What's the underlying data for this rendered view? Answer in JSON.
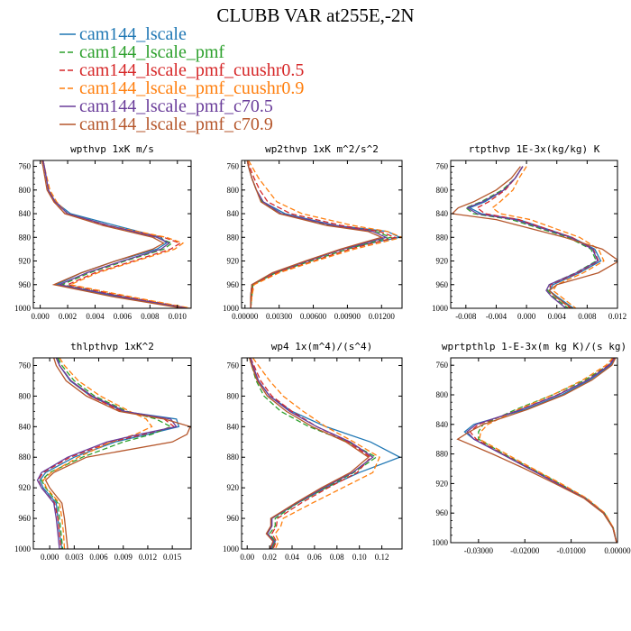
{
  "figure_title": "CLUBB VAR at255E,-2N",
  "legend": [
    {
      "label": "cam144_lscale",
      "color": "#1f77b4",
      "dash": ""
    },
    {
      "label": "cam144_lscale_pmf",
      "color": "#2ca02c",
      "dash": "6,3"
    },
    {
      "label": "cam144_lscale_pmf_cuushr0.5",
      "color": "#d62728",
      "dash": "6,3"
    },
    {
      "label": "cam144_lscale_pmf_cuushr0.9",
      "color": "#ff7f0e",
      "dash": "6,3"
    },
    {
      "label": "cam144_lscale_pmf_c70.5",
      "color": "#6a3d9a",
      "dash": ""
    },
    {
      "label": "cam144_lscale_pmf_c70.9",
      "color": "#b5562b",
      "dash": ""
    }
  ],
  "chart_data": [
    {
      "type": "line",
      "title": "wpthvp  1xK m/s",
      "xlim": [
        -0.0005,
        0.011
      ],
      "ylim": [
        1000,
        750
      ],
      "xticks": [
        0,
        0.002,
        0.004,
        0.006,
        0.008,
        0.01
      ],
      "xtick_labels": [
        "0.000",
        "0.002",
        "0.004",
        "0.006",
        "0.008",
        "0.010"
      ],
      "yticks": [
        760,
        800,
        840,
        880,
        920,
        960,
        1000
      ],
      "ytick_labels": [
        "760",
        "800",
        "840",
        "880",
        "920",
        "960",
        "1000"
      ],
      "y": [
        750,
        760,
        800,
        820,
        840,
        860,
        880,
        890,
        900,
        920,
        940,
        960,
        980,
        1000
      ],
      "series": [
        {
          "x": [
            0.0002,
            0.0003,
            0.0006,
            0.0011,
            0.0022,
            0.0055,
            0.0088,
            0.0092,
            0.0085,
            0.0055,
            0.003,
            0.0012,
            0.0055,
            0.0105
          ]
        },
        {
          "x": [
            0.0002,
            0.0003,
            0.0006,
            0.0011,
            0.002,
            0.005,
            0.0085,
            0.0096,
            0.009,
            0.0062,
            0.0036,
            0.0016,
            0.006,
            0.0108
          ]
        },
        {
          "x": [
            0.0002,
            0.0003,
            0.0006,
            0.001,
            0.0018,
            0.0048,
            0.009,
            0.0102,
            0.0095,
            0.0068,
            0.004,
            0.002,
            0.0062,
            0.0109
          ]
        },
        {
          "x": [
            0.0002,
            0.0003,
            0.0007,
            0.0012,
            0.002,
            0.005,
            0.0092,
            0.0104,
            0.0098,
            0.007,
            0.0042,
            0.0022,
            0.0065,
            0.011
          ]
        },
        {
          "x": [
            0.0002,
            0.0003,
            0.0006,
            0.0011,
            0.002,
            0.005,
            0.0085,
            0.0094,
            0.0088,
            0.006,
            0.0034,
            0.0014,
            0.0058,
            0.0107
          ]
        },
        {
          "x": [
            0.0001,
            0.0002,
            0.0005,
            0.001,
            0.0018,
            0.0046,
            0.0082,
            0.009,
            0.0082,
            0.0055,
            0.003,
            0.001,
            0.0052,
            0.0104
          ]
        }
      ]
    },
    {
      "type": "line",
      "title": "wp2thvp  1xK m^2/s^2",
      "xlim": [
        -0.0003,
        0.0138
      ],
      "ylim": [
        1000,
        750
      ],
      "xticks": [
        0,
        0.003,
        0.006,
        0.009,
        0.012
      ],
      "xtick_labels": [
        "0.00000",
        "0.00300",
        "0.00600",
        "0.00900",
        "0.01200"
      ],
      "yticks": [
        760,
        800,
        840,
        880,
        920,
        960,
        1000
      ],
      "ytick_labels": [
        "760",
        "800",
        "840",
        "880",
        "920",
        "960",
        "1000"
      ],
      "y": [
        750,
        760,
        780,
        800,
        820,
        840,
        860,
        870,
        880,
        900,
        920,
        940,
        960,
        980,
        1000
      ],
      "series": [
        {
          "x": [
            0.0002,
            0.0003,
            0.0006,
            0.001,
            0.0016,
            0.0035,
            0.008,
            0.0125,
            0.0136,
            0.0085,
            0.0055,
            0.0025,
            0.0006,
            0.0005,
            0.0005
          ]
        },
        {
          "x": [
            0.0002,
            0.0003,
            0.0006,
            0.001,
            0.0015,
            0.003,
            0.0075,
            0.0115,
            0.0128,
            0.009,
            0.0058,
            0.0027,
            0.0007,
            0.0006,
            0.0005
          ]
        },
        {
          "x": [
            0.0002,
            0.0004,
            0.0008,
            0.0013,
            0.002,
            0.004,
            0.0085,
            0.0118,
            0.0132,
            0.0092,
            0.006,
            0.0028,
            0.0007,
            0.0006,
            0.0005
          ]
        },
        {
          "x": [
            0.0003,
            0.0006,
            0.0012,
            0.002,
            0.0028,
            0.005,
            0.0095,
            0.0125,
            0.0138,
            0.0096,
            0.0062,
            0.003,
            0.0008,
            0.0006,
            0.0005
          ]
        },
        {
          "x": [
            0.0002,
            0.0003,
            0.0006,
            0.001,
            0.0016,
            0.0032,
            0.0078,
            0.0112,
            0.0124,
            0.0086,
            0.0055,
            0.0025,
            0.0006,
            0.0005,
            0.0005
          ]
        },
        {
          "x": [
            0.0002,
            0.0003,
            0.0006,
            0.001,
            0.0014,
            0.003,
            0.0072,
            0.0108,
            0.012,
            0.0084,
            0.0053,
            0.0024,
            0.0006,
            0.0005,
            0.0005
          ]
        }
      ]
    },
    {
      "type": "line",
      "title": "rtpthvp  1E-3x(kg/kg) K",
      "xlim": [
        -0.01,
        0.012
      ],
      "ylim": [
        1000,
        750
      ],
      "xticks": [
        -0.008,
        -0.004,
        0,
        0.004,
        0.008,
        0.012
      ],
      "xtick_labels": [
        "-0.008",
        "-0.004",
        "0.000",
        "0.004",
        "0.008",
        "0.012"
      ],
      "yticks": [
        760,
        800,
        840,
        880,
        920,
        960,
        1000
      ],
      "ytick_labels": [
        "760",
        "800",
        "840",
        "880",
        "920",
        "960",
        "1000"
      ],
      "y": [
        760,
        780,
        800,
        820,
        830,
        840,
        850,
        880,
        900,
        920,
        940,
        960,
        970,
        980,
        1000
      ],
      "series": [
        {
          "x": [
            -0.0005,
            -0.0015,
            -0.003,
            -0.0055,
            -0.0075,
            -0.006,
            -0.001,
            0.006,
            0.009,
            0.0098,
            0.007,
            0.0035,
            0.003,
            0.004,
            0.0062
          ]
        },
        {
          "x": [
            -0.0005,
            -0.0015,
            -0.0032,
            -0.006,
            -0.008,
            -0.007,
            -0.002,
            0.0055,
            0.0085,
            0.0092,
            0.0065,
            0.003,
            0.0028,
            0.0035,
            0.0055
          ]
        },
        {
          "x": [
            -0.0005,
            -0.0015,
            -0.0028,
            -0.005,
            -0.0065,
            -0.0055,
            -0.001,
            0.006,
            0.0088,
            0.0095,
            0.0068,
            0.0032,
            0.003,
            0.0038,
            0.0058
          ]
        },
        {
          "x": [
            0.0,
            -0.001,
            -0.0018,
            -0.0035,
            -0.0045,
            -0.0035,
            0.0005,
            0.007,
            0.0095,
            0.0102,
            0.0075,
            0.004,
            0.0035,
            0.0045,
            0.0065
          ]
        },
        {
          "x": [
            -0.0005,
            -0.0015,
            -0.003,
            -0.0058,
            -0.0078,
            -0.0065,
            -0.0015,
            0.0058,
            0.0087,
            0.0094,
            0.0066,
            0.003,
            0.0026,
            0.0033,
            0.0052
          ]
        },
        {
          "x": [
            -0.0008,
            -0.002,
            -0.004,
            -0.007,
            -0.009,
            -0.0098,
            -0.004,
            0.005,
            0.01,
            0.0122,
            0.0095,
            0.004,
            0.003,
            0.0038,
            0.006
          ]
        }
      ]
    },
    {
      "type": "line",
      "title": "thlpthvp  1xK^2",
      "xlim": [
        -0.002,
        0.0173
      ],
      "ylim": [
        1000,
        750
      ],
      "xticks": [
        0,
        0.003,
        0.006,
        0.009,
        0.012,
        0.015
      ],
      "xtick_labels": [
        "0.000",
        "0.003",
        "0.006",
        "0.009",
        "0.012",
        "0.015"
      ],
      "yticks": [
        760,
        800,
        840,
        880,
        920,
        960,
        1000
      ],
      "ytick_labels": [
        "760",
        "800",
        "840",
        "880",
        "920",
        "960",
        "1000"
      ],
      "y": [
        750,
        760,
        780,
        800,
        820,
        830,
        840,
        850,
        860,
        880,
        900,
        910,
        920,
        940,
        960,
        980,
        1000
      ],
      "series": [
        {
          "x": [
            0.001,
            0.0012,
            0.0025,
            0.005,
            0.009,
            0.0155,
            0.0158,
            0.012,
            0.008,
            0.003,
            -0.0005,
            -0.0012,
            -0.0008,
            0.0008,
            0.001,
            0.0012,
            0.0015
          ]
        },
        {
          "x": [
            0.001,
            0.0015,
            0.003,
            0.0055,
            0.0095,
            0.013,
            0.0148,
            0.0125,
            0.009,
            0.004,
            0.0,
            -0.001,
            -0.0005,
            0.001,
            0.0012,
            0.0014,
            0.0016
          ]
        },
        {
          "x": [
            0.0008,
            0.0012,
            0.0026,
            0.005,
            0.0088,
            0.014,
            0.0152,
            0.0115,
            0.0075,
            0.0025,
            -0.0008,
            -0.0014,
            -0.001,
            0.0006,
            0.001,
            0.0012,
            0.0014
          ]
        },
        {
          "x": [
            0.0012,
            0.0018,
            0.0035,
            0.0062,
            0.0098,
            0.0118,
            0.0125,
            0.0105,
            0.0075,
            0.0035,
            0.0002,
            -0.0008,
            -0.0004,
            0.0012,
            0.0015,
            0.0017,
            0.0018
          ]
        },
        {
          "x": [
            0.0008,
            0.0012,
            0.0026,
            0.0052,
            0.0092,
            0.0148,
            0.0155,
            0.011,
            0.007,
            0.0022,
            -0.001,
            -0.0015,
            -0.001,
            0.0005,
            0.0008,
            0.001,
            0.0012
          ]
        },
        {
          "x": [
            0.0005,
            0.0008,
            0.002,
            0.0045,
            0.0085,
            0.014,
            0.0172,
            0.0168,
            0.015,
            0.0045,
            0.0005,
            -0.0005,
            0.0,
            0.0015,
            0.0018,
            0.002,
            0.0022
          ]
        }
      ]
    },
    {
      "type": "line",
      "title": "wp4  1x(m^4)/(s^4)",
      "xlim": [
        -0.005,
        0.138
      ],
      "ylim": [
        1000,
        750
      ],
      "xticks": [
        0,
        0.02,
        0.04,
        0.06,
        0.08,
        0.1,
        0.12
      ],
      "xtick_labels": [
        "0.00",
        "0.02",
        "0.04",
        "0.06",
        "0.08",
        "0.10",
        "0.12"
      ],
      "yticks": [
        760,
        800,
        840,
        880,
        920,
        960,
        1000
      ],
      "ytick_labels": [
        "760",
        "800",
        "840",
        "880",
        "920",
        "960",
        "1000"
      ],
      "y": [
        750,
        760,
        780,
        800,
        820,
        840,
        860,
        880,
        900,
        920,
        940,
        960,
        970,
        980,
        990,
        1000
      ],
      "series": [
        {
          "x": [
            0.003,
            0.005,
            0.01,
            0.02,
            0.04,
            0.07,
            0.11,
            0.136,
            0.1,
            0.07,
            0.045,
            0.022,
            0.022,
            0.018,
            0.025,
            0.022
          ]
        },
        {
          "x": [
            0.002,
            0.004,
            0.008,
            0.015,
            0.03,
            0.055,
            0.09,
            0.115,
            0.095,
            0.07,
            0.045,
            0.025,
            0.025,
            0.02,
            0.025,
            0.022
          ]
        },
        {
          "x": [
            0.003,
            0.006,
            0.012,
            0.022,
            0.04,
            0.062,
            0.09,
            0.11,
            0.098,
            0.072,
            0.048,
            0.027,
            0.026,
            0.022,
            0.026,
            0.023
          ]
        },
        {
          "x": [
            0.005,
            0.01,
            0.02,
            0.032,
            0.05,
            0.07,
            0.095,
            0.118,
            0.112,
            0.085,
            0.058,
            0.032,
            0.03,
            0.025,
            0.028,
            0.025
          ]
        },
        {
          "x": [
            0.003,
            0.005,
            0.01,
            0.02,
            0.038,
            0.062,
            0.092,
            0.112,
            0.094,
            0.068,
            0.044,
            0.022,
            0.022,
            0.018,
            0.024,
            0.021
          ]
        },
        {
          "x": [
            0.002,
            0.004,
            0.009,
            0.018,
            0.035,
            0.058,
            0.088,
            0.108,
            0.092,
            0.066,
            0.043,
            0.021,
            0.021,
            0.017,
            0.023,
            0.02
          ]
        }
      ]
    },
    {
      "type": "line",
      "title": "wprtpthlp  1-E-3x(m kg K)/(s kg)",
      "xlim": [
        -0.036,
        0.0
      ],
      "ylim": [
        1000,
        750
      ],
      "xticks": [
        -0.03,
        -0.02,
        -0.01,
        0.0
      ],
      "xtick_labels": [
        "-0.03000",
        "-0.02000",
        "-0.01000",
        "0.00000"
      ],
      "yticks": [
        760,
        800,
        840,
        880,
        920,
        960,
        1000
      ],
      "ytick_labels": [
        "760",
        "800",
        "840",
        "880",
        "920",
        "960",
        "1000"
      ],
      "y": [
        750,
        760,
        780,
        800,
        820,
        840,
        850,
        860,
        880,
        900,
        920,
        940,
        960,
        980,
        1000
      ],
      "series": [
        {
          "x": [
            -0.0005,
            -0.0015,
            -0.006,
            -0.012,
            -0.02,
            -0.031,
            -0.033,
            -0.031,
            -0.025,
            -0.019,
            -0.013,
            -0.007,
            -0.003,
            -0.001,
            -0.0002
          ]
        },
        {
          "x": [
            -0.0005,
            -0.002,
            -0.007,
            -0.014,
            -0.022,
            -0.029,
            -0.03,
            -0.03,
            -0.0245,
            -0.0185,
            -0.0125,
            -0.0068,
            -0.0028,
            -0.0009,
            -0.0002
          ]
        },
        {
          "x": [
            -0.0008,
            -0.002,
            -0.0065,
            -0.013,
            -0.021,
            -0.03,
            -0.0318,
            -0.0305,
            -0.0248,
            -0.0188,
            -0.0128,
            -0.0069,
            -0.0029,
            -0.0009,
            -0.0002
          ]
        },
        {
          "x": [
            -0.001,
            -0.0025,
            -0.0075,
            -0.014,
            -0.0215,
            -0.028,
            -0.0295,
            -0.0298,
            -0.024,
            -0.0182,
            -0.0122,
            -0.0066,
            -0.0027,
            -0.0009,
            -0.0002
          ]
        },
        {
          "x": [
            -0.0006,
            -0.0018,
            -0.0064,
            -0.0128,
            -0.0208,
            -0.0305,
            -0.0325,
            -0.031,
            -0.025,
            -0.019,
            -0.013,
            -0.007,
            -0.003,
            -0.001,
            -0.0002
          ]
        },
        {
          "x": [
            -0.0004,
            -0.0012,
            -0.0055,
            -0.0115,
            -0.0195,
            -0.029,
            -0.032,
            -0.0345,
            -0.027,
            -0.02,
            -0.0135,
            -0.0072,
            -0.0031,
            -0.001,
            -0.0002
          ]
        }
      ]
    }
  ]
}
